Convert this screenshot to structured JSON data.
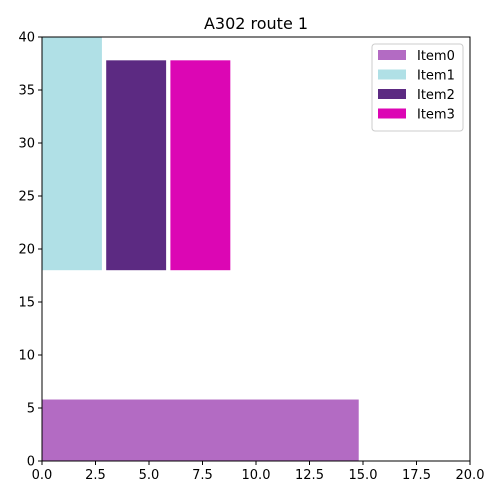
{
  "chart_data": {
    "type": "bar",
    "title": "A302 route 1",
    "xlabel": "",
    "ylabel": "",
    "xlim": [
      0,
      20
    ],
    "ylim": [
      0,
      40
    ],
    "x_ticks": [
      "0.0",
      "2.5",
      "5.0",
      "7.5",
      "10.0",
      "12.5",
      "15.0",
      "17.5",
      "20.0"
    ],
    "y_ticks": [
      "0",
      "5",
      "10",
      "15",
      "20",
      "25",
      "30",
      "35",
      "40"
    ],
    "grid": false,
    "legend_position": "top-right",
    "series": [
      {
        "name": "Item0",
        "color": "#b36bc3",
        "x0": 0.0,
        "x1": 14.8,
        "y0": 0,
        "y1": 5.8
      },
      {
        "name": "Item1",
        "color": "#b0e0e6",
        "x0": 0.0,
        "x1": 2.8,
        "y0": 18,
        "y1": 40
      },
      {
        "name": "Item2",
        "color": "#5c2a82",
        "x0": 3.0,
        "x1": 5.8,
        "y0": 18,
        "y1": 37.8
      },
      {
        "name": "Item3",
        "color": "#dc06b4",
        "x0": 6.0,
        "x1": 8.8,
        "y0": 18,
        "y1": 37.8
      }
    ]
  }
}
